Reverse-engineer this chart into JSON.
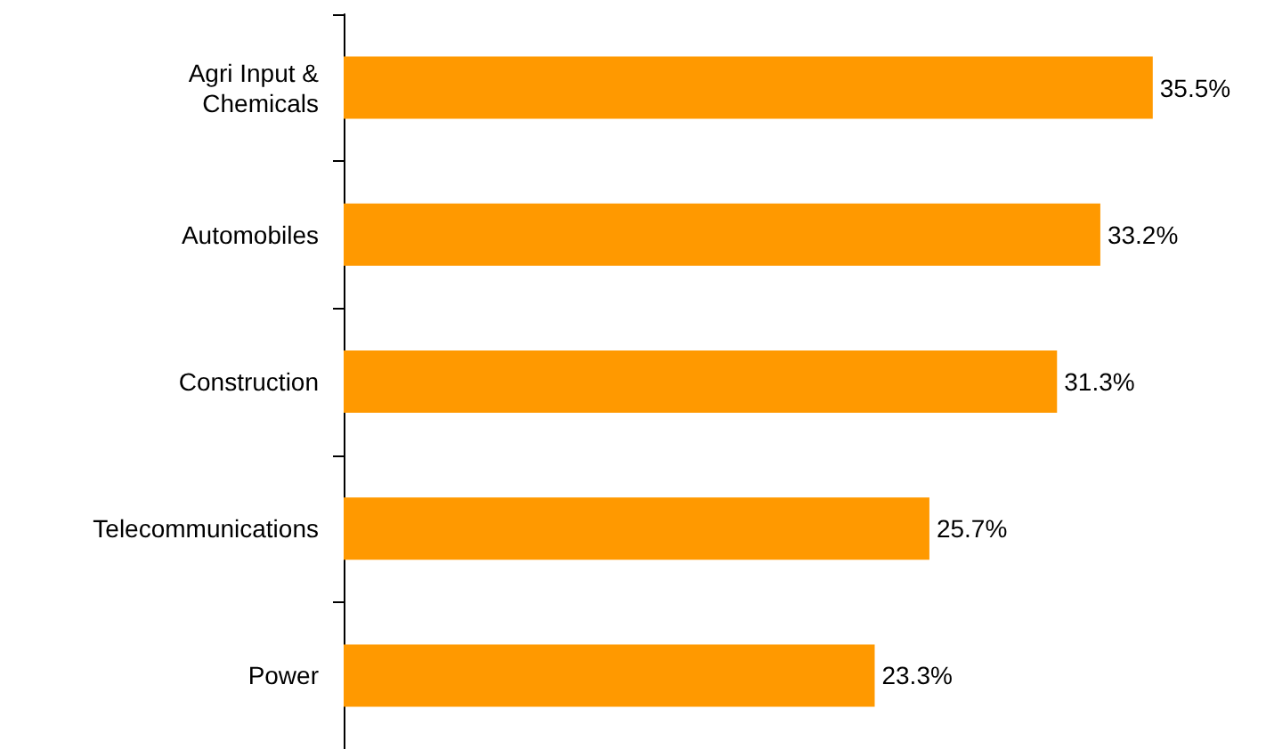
{
  "chart_data": {
    "type": "bar",
    "orientation": "horizontal",
    "categories": [
      "Agri Input & Chemicals",
      "Automobiles",
      "Construction",
      "Telecommunications",
      "Power"
    ],
    "values": [
      35.5,
      33.2,
      31.3,
      25.7,
      23.3
    ],
    "value_labels": [
      "35.5%",
      "33.2%",
      "31.3%",
      "25.7%",
      "23.3%"
    ],
    "color": "#ff9900",
    "tick_labels": "y"
  }
}
